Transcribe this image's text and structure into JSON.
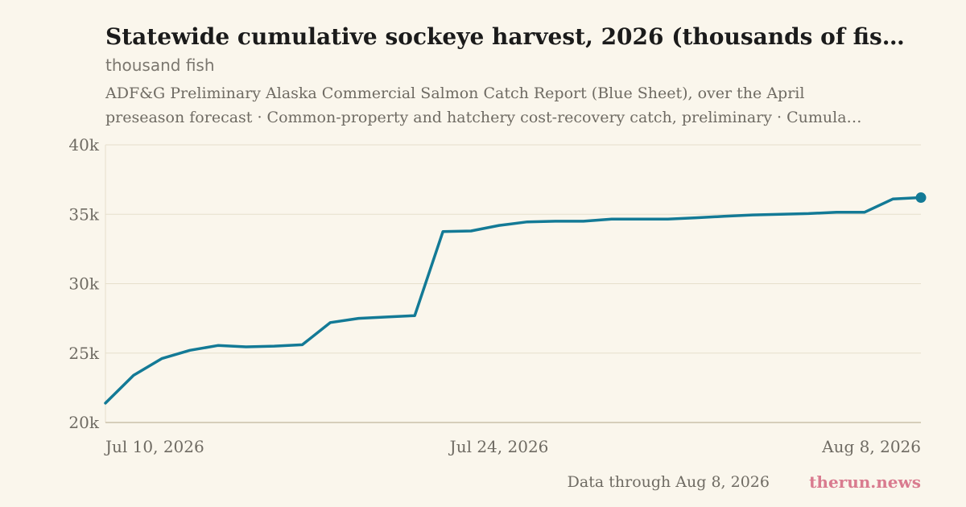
{
  "header": {
    "title": "Statewide cumulative sockeye harvest, 2026 (thousands of fis…",
    "subtitle": "thousand fish",
    "source_line1": "ADF&G Preliminary Alaska Commercial Salmon Catch Report (Blue Sheet), over the April",
    "source_line2": "preseason forecast · Common-property and hatchery cost-recovery catch, preliminary · Cumula…"
  },
  "footer": {
    "note": "Data through Aug 8, 2026",
    "brand": "therun.news"
  },
  "colors": {
    "background": "#faf6ec",
    "line": "#137a96",
    "grid": "#e6dfcc",
    "axis": "#c9c0aa",
    "brand": "#d97b8f"
  },
  "chart_data": {
    "type": "line",
    "title": "Statewide cumulative sockeye harvest, 2026 (thousands of fis…",
    "ylabel": "thousand fish",
    "xlabel": "",
    "ylim": [
      20000,
      40000
    ],
    "xlim": [
      "2026-07-10",
      "2026-08-08"
    ],
    "yticks": [
      20000,
      25000,
      30000,
      35000,
      40000
    ],
    "ytick_labels": [
      "20k",
      "25k",
      "30k",
      "35k",
      "40k"
    ],
    "xticks": [
      "2026-07-10",
      "2026-07-24",
      "2026-08-08"
    ],
    "xtick_labels": [
      "Jul 10, 2026",
      "Jul 24, 2026",
      "Aug 8, 2026"
    ],
    "grid": "horizontal",
    "series": [
      {
        "x": [
          "2026-07-10",
          "2026-07-11",
          "2026-07-12",
          "2026-07-13",
          "2026-07-14",
          "2026-07-15",
          "2026-07-16",
          "2026-07-17",
          "2026-07-18",
          "2026-07-19",
          "2026-07-20",
          "2026-07-21",
          "2026-07-22",
          "2026-07-23",
          "2026-07-24",
          "2026-07-25",
          "2026-07-26",
          "2026-07-27",
          "2026-07-28",
          "2026-07-29",
          "2026-07-30",
          "2026-07-31",
          "2026-08-01",
          "2026-08-02",
          "2026-08-03",
          "2026-08-04",
          "2026-08-05",
          "2026-08-06",
          "2026-08-07",
          "2026-08-08"
        ],
        "values": [
          21400,
          23400,
          24600,
          25200,
          25550,
          25450,
          25500,
          25600,
          27200,
          27500,
          27600,
          27700,
          33750,
          33800,
          34200,
          34450,
          34500,
          34500,
          34650,
          34650,
          34650,
          34750,
          34850,
          34950,
          35000,
          35050,
          35150,
          35150,
          36100,
          36200
        ]
      }
    ]
  }
}
